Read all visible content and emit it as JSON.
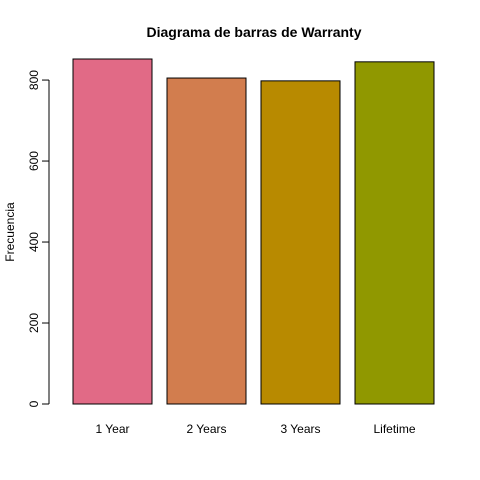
{
  "chart_data": {
    "type": "bar",
    "title": "Diagrama de barras de Warranty",
    "xlabel": "",
    "ylabel": "Frecuencia",
    "categories": [
      "1 Year",
      "2 Years",
      "3 Years",
      "Lifetime"
    ],
    "values": [
      852,
      805,
      798,
      845
    ],
    "colors": [
      "#E16A86",
      "#D27D4E",
      "#B88A00",
      "#909800"
    ],
    "ylim": [
      0,
      852
    ],
    "yticks": [
      0,
      200,
      400,
      600,
      800
    ],
    "grid": false,
    "legend": "none"
  }
}
